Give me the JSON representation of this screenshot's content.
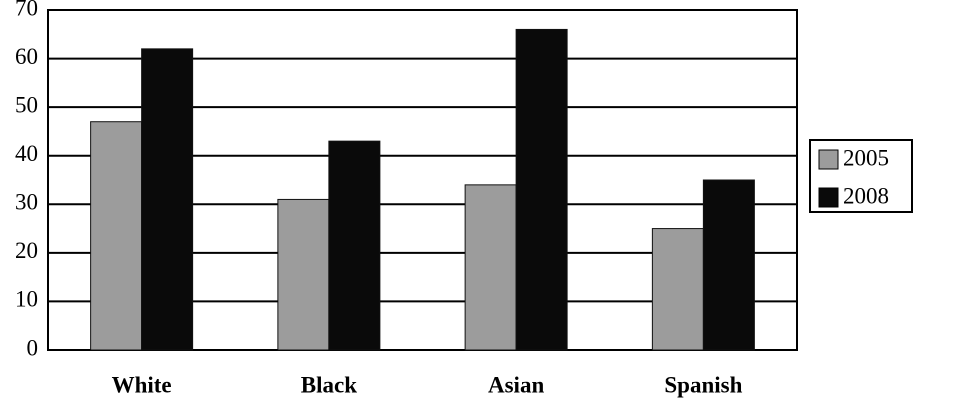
{
  "chart_data": {
    "type": "bar",
    "categories": [
      "White",
      "Black",
      "Asian",
      "Spanish"
    ],
    "series": [
      {
        "name": "2005",
        "color": "#9c9c9c",
        "values": [
          47,
          31,
          34,
          25
        ]
      },
      {
        "name": "2008",
        "color": "#0a0a0a",
        "values": [
          62,
          43,
          66,
          35
        ]
      }
    ],
    "ylim": [
      0,
      70
    ],
    "yticks": [
      0,
      10,
      20,
      30,
      40,
      50,
      60,
      70
    ],
    "grid": true,
    "legend": "right"
  }
}
